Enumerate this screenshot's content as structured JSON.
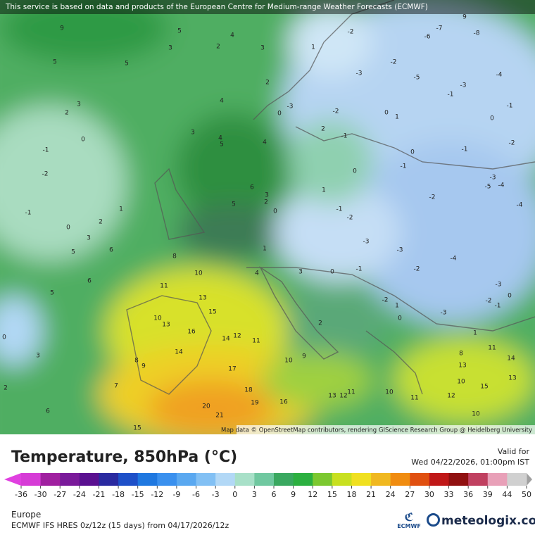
{
  "header": {
    "notice": "This service is based on data and products of the European Centre for Medium-range Weather Forecasts (ECMWF)"
  },
  "map": {
    "attribution": "Map data © OpenStreetMap contributors, rendering GIScience Research Group @ Heidelberg University",
    "contour_labels": [
      9,
      5,
      4,
      3,
      2,
      3,
      1,
      5,
      5,
      2,
      4,
      3,
      2,
      3,
      4,
      5,
      -1,
      0,
      -2,
      6,
      -1,
      0,
      2,
      1,
      5,
      3,
      6,
      5,
      8,
      10,
      11,
      5,
      6,
      13,
      15,
      10,
      13,
      16,
      14,
      12,
      11,
      14,
      17,
      10,
      9,
      18,
      19,
      16,
      20,
      21,
      15,
      8,
      9,
      7,
      6,
      2,
      3,
      0,
      13,
      12,
      11,
      10,
      11,
      10,
      12,
      15,
      10,
      14,
      13,
      13,
      11,
      8,
      -7,
      -6,
      -8,
      9,
      -2,
      -3,
      -2,
      -5,
      -1,
      -3,
      -2,
      -1,
      0,
      1,
      -4,
      0,
      -1,
      -2,
      -1,
      0,
      -1,
      0,
      -2,
      -3,
      -5,
      -4,
      -4,
      -1,
      -2,
      -3,
      -3,
      -4,
      -2,
      -1,
      0,
      -3,
      -2,
      -1,
      0,
      -2,
      1,
      -3,
      0,
      1,
      2,
      3,
      4,
      3,
      2,
      0,
      1,
      1,
      -3,
      0,
      2,
      4
    ]
  },
  "legend": {
    "title": "Temperature, 850hPa (°C)",
    "valid_label": "Valid for",
    "valid_time": "Wed 04/22/2026, 01:00pm IST",
    "ticks": [
      -36,
      -30,
      -27,
      -24,
      -21,
      -18,
      -15,
      -12,
      -9,
      -6,
      -3,
      0,
      3,
      6,
      9,
      12,
      15,
      18,
      21,
      24,
      27,
      30,
      33,
      36,
      39,
      44,
      50
    ],
    "colors": [
      "#d63cd6",
      "#a020a0",
      "#7a1a9a",
      "#5a1090",
      "#2a2aa0",
      "#1e50c8",
      "#1f78e0",
      "#3a90ee",
      "#5aa8f0",
      "#82c0f4",
      "#b2d8f6",
      "#a8e0c8",
      "#70c8a0",
      "#3aa860",
      "#2cb040",
      "#7cc830",
      "#c8e020",
      "#f0e020",
      "#f0b820",
      "#f08c10",
      "#e05010",
      "#c01818",
      "#901010",
      "#c04060",
      "#e8a0b8",
      "#d0d0d0"
    ],
    "under_color": "#e040e0",
    "over_color": "#a0a0a0"
  },
  "footer": {
    "region": "Europe",
    "model": "ECMWF IFS HRES 0z/12z (15 days) from 04/17/2026/12z",
    "ecmwf_logo": "ECMWF",
    "brand": "meteologix.com"
  }
}
